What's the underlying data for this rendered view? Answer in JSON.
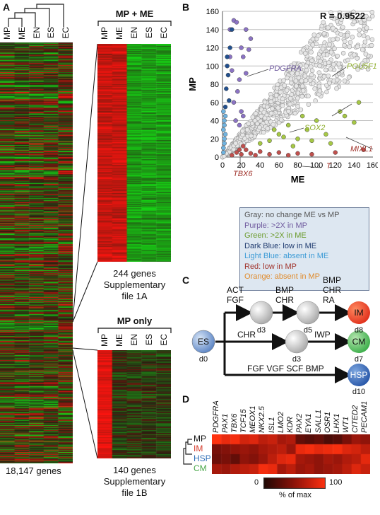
{
  "panelA": {
    "letter": "A",
    "columns": [
      "MP",
      "ME",
      "EN",
      "ES",
      "EC"
    ],
    "total_label": "18,147 genes",
    "subsets": [
      {
        "title": "MP + ME",
        "count": "244 genes",
        "supp1": "Supplementary",
        "supp2": "file 1A"
      },
      {
        "title": "MP only",
        "count": "140 genes",
        "supp1": "Supplementary",
        "supp2": "file 1B"
      }
    ]
  },
  "panelB": {
    "letter": "B",
    "r_label": "R = 0.9522",
    "legend": [
      {
        "text": "Gray: no change ME vs MP",
        "color": "#555555"
      },
      {
        "text": "Purple: >2X in MP",
        "color": "#6f5a9e"
      },
      {
        "text": "Green: >2X in ME",
        "color": "#6a9a2a"
      },
      {
        "text": "Dark Blue: low in ME",
        "color": "#1e3a6e"
      },
      {
        "text": "Light Blue: absent in ME",
        "color": "#3c9bd6"
      },
      {
        "text": "Red: low in MP",
        "color": "#a0322a"
      },
      {
        "text": "Orange: absent in MP",
        "color": "#e08a2a"
      }
    ],
    "gene_labels": [
      {
        "text": "PDGFRA",
        "color": "#6f5a9e"
      },
      {
        "text": "POU5F1",
        "color": "#8fae2e"
      },
      {
        "text": "SOX2",
        "color": "#8fae2e"
      },
      {
        "text": "MIXL1",
        "color": "#a0322a"
      },
      {
        "text": "T",
        "color": "#a0322a"
      },
      {
        "text": "TBX6",
        "color": "#a0322a"
      }
    ]
  },
  "chart_data": {
    "type": "scatter",
    "title": "",
    "xlabel": "ME",
    "ylabel": "MP",
    "xlim": [
      0,
      160
    ],
    "ylim": [
      0,
      160
    ],
    "xticks": [
      0,
      20,
      40,
      60,
      80,
      100,
      120,
      140,
      160
    ],
    "yticks": [
      0,
      20,
      40,
      60,
      80,
      100,
      120,
      140,
      160
    ],
    "grid": "horizontal",
    "annotation": "R = 0.9522",
    "series": [
      {
        "name": "Purple",
        "color": "#8b73c4",
        "points": [
          [
            8,
            140
          ],
          [
            12,
            150
          ],
          [
            15,
            148
          ],
          [
            20,
            120
          ],
          [
            22,
            110
          ],
          [
            25,
            92
          ],
          [
            18,
            85
          ],
          [
            12,
            60
          ],
          [
            16,
            72
          ],
          [
            20,
            50
          ],
          [
            8,
            110
          ],
          [
            10,
            95
          ],
          [
            25,
            140
          ],
          [
            30,
            130
          ],
          [
            28,
            118
          ],
          [
            14,
            40
          ],
          [
            18,
            35
          ],
          [
            22,
            45
          ]
        ]
      },
      {
        "name": "Green",
        "color": "#a6c845",
        "points": [
          [
            40,
            15
          ],
          [
            55,
            30
          ],
          [
            60,
            25
          ],
          [
            70,
            35
          ],
          [
            80,
            20
          ],
          [
            95,
            18
          ],
          [
            110,
            25
          ],
          [
            130,
            45
          ],
          [
            140,
            38
          ],
          [
            145,
            60
          ],
          [
            125,
            50
          ],
          [
            90,
            30
          ],
          [
            75,
            12
          ],
          [
            100,
            40
          ],
          [
            115,
            15
          ],
          [
            85,
            45
          ],
          [
            65,
            22
          ],
          [
            50,
            18
          ]
        ]
      },
      {
        "name": "Dark Blue",
        "color": "#22508f",
        "points": [
          [
            8,
            120
          ],
          [
            10,
            140
          ],
          [
            5,
            100
          ],
          [
            6,
            90
          ],
          [
            4,
            75
          ],
          [
            7,
            62
          ],
          [
            3,
            55
          ],
          [
            5,
            110
          ]
        ]
      },
      {
        "name": "Light Blue",
        "color": "#6fb3e0",
        "points": [
          [
            1,
            10
          ],
          [
            2,
            20
          ],
          [
            1,
            30
          ],
          [
            2,
            40
          ],
          [
            1,
            50
          ],
          [
            3,
            25
          ],
          [
            2,
            15
          ],
          [
            1,
            5
          ],
          [
            2,
            35
          ],
          [
            3,
            45
          ]
        ]
      },
      {
        "name": "Red",
        "color": "#c0504d",
        "points": [
          [
            10,
            2
          ],
          [
            15,
            5
          ],
          [
            20,
            3
          ],
          [
            25,
            8
          ],
          [
            30,
            4
          ],
          [
            35,
            2
          ],
          [
            40,
            6
          ],
          [
            50,
            3
          ],
          [
            60,
            5
          ],
          [
            70,
            2
          ],
          [
            80,
            4
          ],
          [
            95,
            3
          ],
          [
            120,
            5
          ],
          [
            150,
            8
          ],
          [
            22,
            12
          ],
          [
            18,
            8
          ]
        ]
      }
    ]
  },
  "panelC": {
    "letter": "C",
    "nodes": [
      {
        "id": "ES",
        "day": "d0"
      },
      {
        "id": "",
        "day": "d3"
      },
      {
        "id": "",
        "day": "d5"
      },
      {
        "id": "IM",
        "day": "d8"
      },
      {
        "id": "",
        "day": "d3"
      },
      {
        "id": "CM",
        "day": "d7"
      },
      {
        "id": "HSP",
        "day": "d10"
      }
    ],
    "edges": [
      {
        "label1": "ACT",
        "label2": "FGF"
      },
      {
        "label1": "BMP",
        "label2": "CHR"
      },
      {
        "label1": "BMP",
        "label2": "CHR",
        "label3": "RA"
      },
      {
        "label1": "CHR"
      },
      {
        "label1": "IWP"
      },
      {
        "label1": "FGF VGF SCF BMP"
      }
    ]
  },
  "panelD": {
    "letter": "D",
    "genes": [
      "PDGFRA",
      "PAX1",
      "TBX6",
      "TCF15",
      "MEOX1",
      "NKX2.5",
      "ISL1",
      "LMO2",
      "KDR",
      "PAX2",
      "EYA1",
      "SALL1",
      "OSR1",
      "LHX1",
      "WT1",
      "CITED2",
      "PECAM1"
    ],
    "rows": [
      {
        "name": "MP",
        "color": "#111111"
      },
      {
        "name": "IM",
        "color": "#d63a2a"
      },
      {
        "name": "HSP",
        "color": "#2f6fb7"
      },
      {
        "name": "CM",
        "color": "#4aa84a"
      }
    ],
    "values": [
      [
        100,
        90,
        95,
        80,
        85,
        70,
        75,
        60,
        65,
        30,
        25,
        30,
        20,
        25,
        40,
        55,
        50
      ],
      [
        40,
        45,
        50,
        55,
        50,
        60,
        65,
        70,
        55,
        90,
        95,
        88,
        92,
        96,
        85,
        80,
        70
      ],
      [
        35,
        40,
        30,
        50,
        45,
        55,
        70,
        85,
        90,
        60,
        55,
        50,
        60,
        55,
        65,
        70,
        88
      ],
      [
        60,
        55,
        65,
        70,
        75,
        95,
        90,
        60,
        70,
        55,
        60,
        50,
        55,
        60,
        70,
        85,
        75
      ]
    ],
    "scale_min": "0",
    "scale_max": "100",
    "scale_label": "% of max"
  }
}
